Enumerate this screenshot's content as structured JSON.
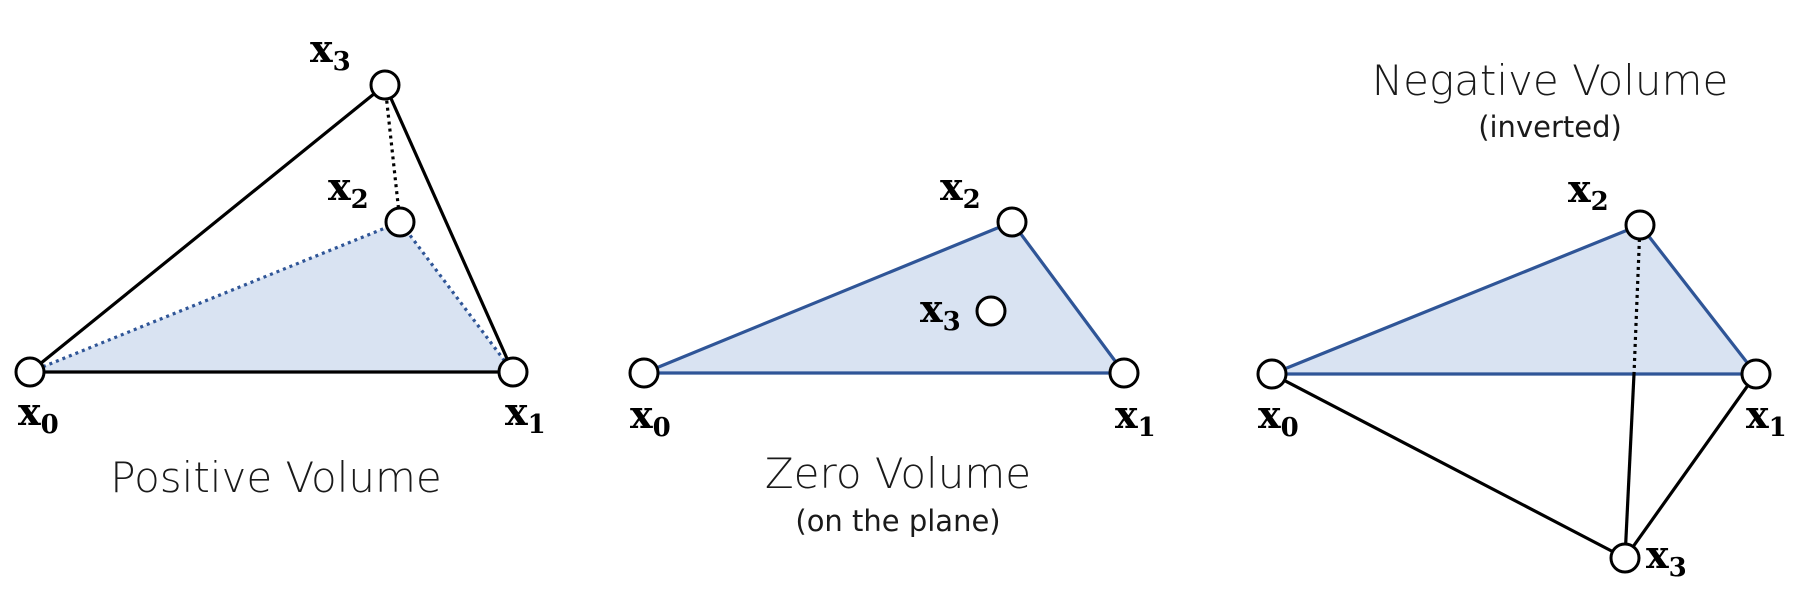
{
  "panels": [
    {
      "caption": "Positive Volume",
      "subcaption": "",
      "vertices": {
        "x0": "x",
        "x1": "x",
        "x2": "x",
        "x3": "x"
      },
      "indices": {
        "x0": "0",
        "x1": "1",
        "x2": "2",
        "x3": "3"
      }
    },
    {
      "caption": "Zero Volume",
      "subcaption": "(on the plane)",
      "indices": {
        "x0": "0",
        "x1": "1",
        "x2": "2",
        "x3": "3"
      }
    },
    {
      "caption": "Negative Volume",
      "subcaption": "(inverted)",
      "indices": {
        "x0": "0",
        "x1": "1",
        "x2": "2",
        "x3": "3"
      }
    }
  ],
  "vertex_symbol": "x",
  "colors": {
    "face_fill": "#d9e3f2",
    "blue_edge": "#2f5597",
    "black_edge": "#000000"
  }
}
